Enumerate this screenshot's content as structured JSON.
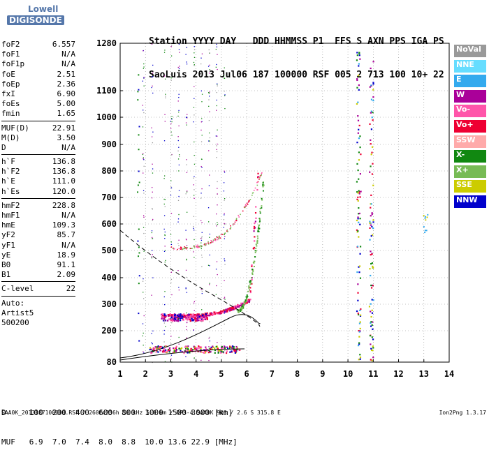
{
  "logo": {
    "line1": "Lowell",
    "line2": "DIGISONDE"
  },
  "header": {
    "line1": "Station YYYY DAY   DDD HHMMSS P1  FFS S AXN PPS IGA PS",
    "line2": "SaoLuis 2013 Jul06 187 100000 RSF 005 2 713 100 10+ 22"
  },
  "params": [
    [
      {
        "label": "foF2",
        "value": "6.557"
      },
      {
        "label": "foF1",
        "value": "N/A"
      },
      {
        "label": "foF1p",
        "value": "N/A"
      },
      {
        "label": "foE",
        "value": "2.51"
      },
      {
        "label": "foEp",
        "value": "2.36"
      },
      {
        "label": "fxI",
        "value": "6.90"
      },
      {
        "label": "foEs",
        "value": "5.00"
      },
      {
        "label": "fmin",
        "value": "1.65"
      }
    ],
    [
      {
        "label": "MUF(D)",
        "value": "22.91"
      },
      {
        "label": "M(D)",
        "value": "3.50"
      },
      {
        "label": "D",
        "value": "N/A"
      }
    ],
    [
      {
        "label": "h`F",
        "value": "136.8"
      },
      {
        "label": "h`F2",
        "value": "136.8"
      },
      {
        "label": "h`E",
        "value": "111.0"
      },
      {
        "label": "h`Es",
        "value": "120.0"
      }
    ],
    [
      {
        "label": "hmF2",
        "value": "228.8"
      },
      {
        "label": "hmF1",
        "value": "N/A"
      },
      {
        "label": "hmE",
        "value": "109.3"
      },
      {
        "label": "yF2",
        "value": "85.7"
      },
      {
        "label": "yF1",
        "value": "N/A"
      },
      {
        "label": "yE",
        "value": "18.9"
      },
      {
        "label": "B0",
        "value": "91.1"
      },
      {
        "label": "B1",
        "value": "2.09"
      }
    ],
    [
      {
        "label": "C-level",
        "value": "22"
      }
    ],
    [
      {
        "label": "Auto:",
        "value": ""
      },
      {
        "label": "Artist5",
        "value": ""
      },
      {
        "label": "500200",
        "value": ""
      }
    ]
  ],
  "legend": [
    {
      "label": "NoVal",
      "color": "#999999"
    },
    {
      "label": "NNE",
      "color": "#66ddff"
    },
    {
      "label": "E",
      "color": "#33aaee"
    },
    {
      "label": "W",
      "color": "#aa0099"
    },
    {
      "label": "Vo-",
      "color": "#ff55aa"
    },
    {
      "label": "Vo+",
      "color": "#ee0033"
    },
    {
      "label": "SSW",
      "color": "#ffaaaa"
    },
    {
      "label": "X-",
      "color": "#118811"
    },
    {
      "label": "X+",
      "color": "#77bb55"
    },
    {
      "label": "SSE",
      "color": "#cccc00"
    },
    {
      "label": "NNW",
      "color": "#0000cc"
    }
  ],
  "axes": {
    "x_ticks": [
      "1",
      "2",
      "3",
      "4",
      "5",
      "6",
      "7",
      "8",
      "9",
      "10",
      "11",
      "12",
      "13",
      "14"
    ],
    "y_ticks": [
      "80",
      "200",
      "300",
      "400",
      "500",
      "600",
      "700",
      "800",
      "900",
      "1000",
      "1100",
      "1280"
    ]
  },
  "bottom": {
    "line1": "D     100  200  400  600  800  1000 1500 3000 [km]",
    "line2": "MUF   6.9  7.0  7.4  8.0  8.8  10.0 13.6 22.9 [MHz]"
  },
  "footer": {
    "left": "SAA0K_2013187100000.RSF / 260fx256h 50 kHz 5.0 km / DPS-4 SAA0K 903 / 2.6 S 315.8 E",
    "right": "Ion2Png 1.3.17"
  }
}
